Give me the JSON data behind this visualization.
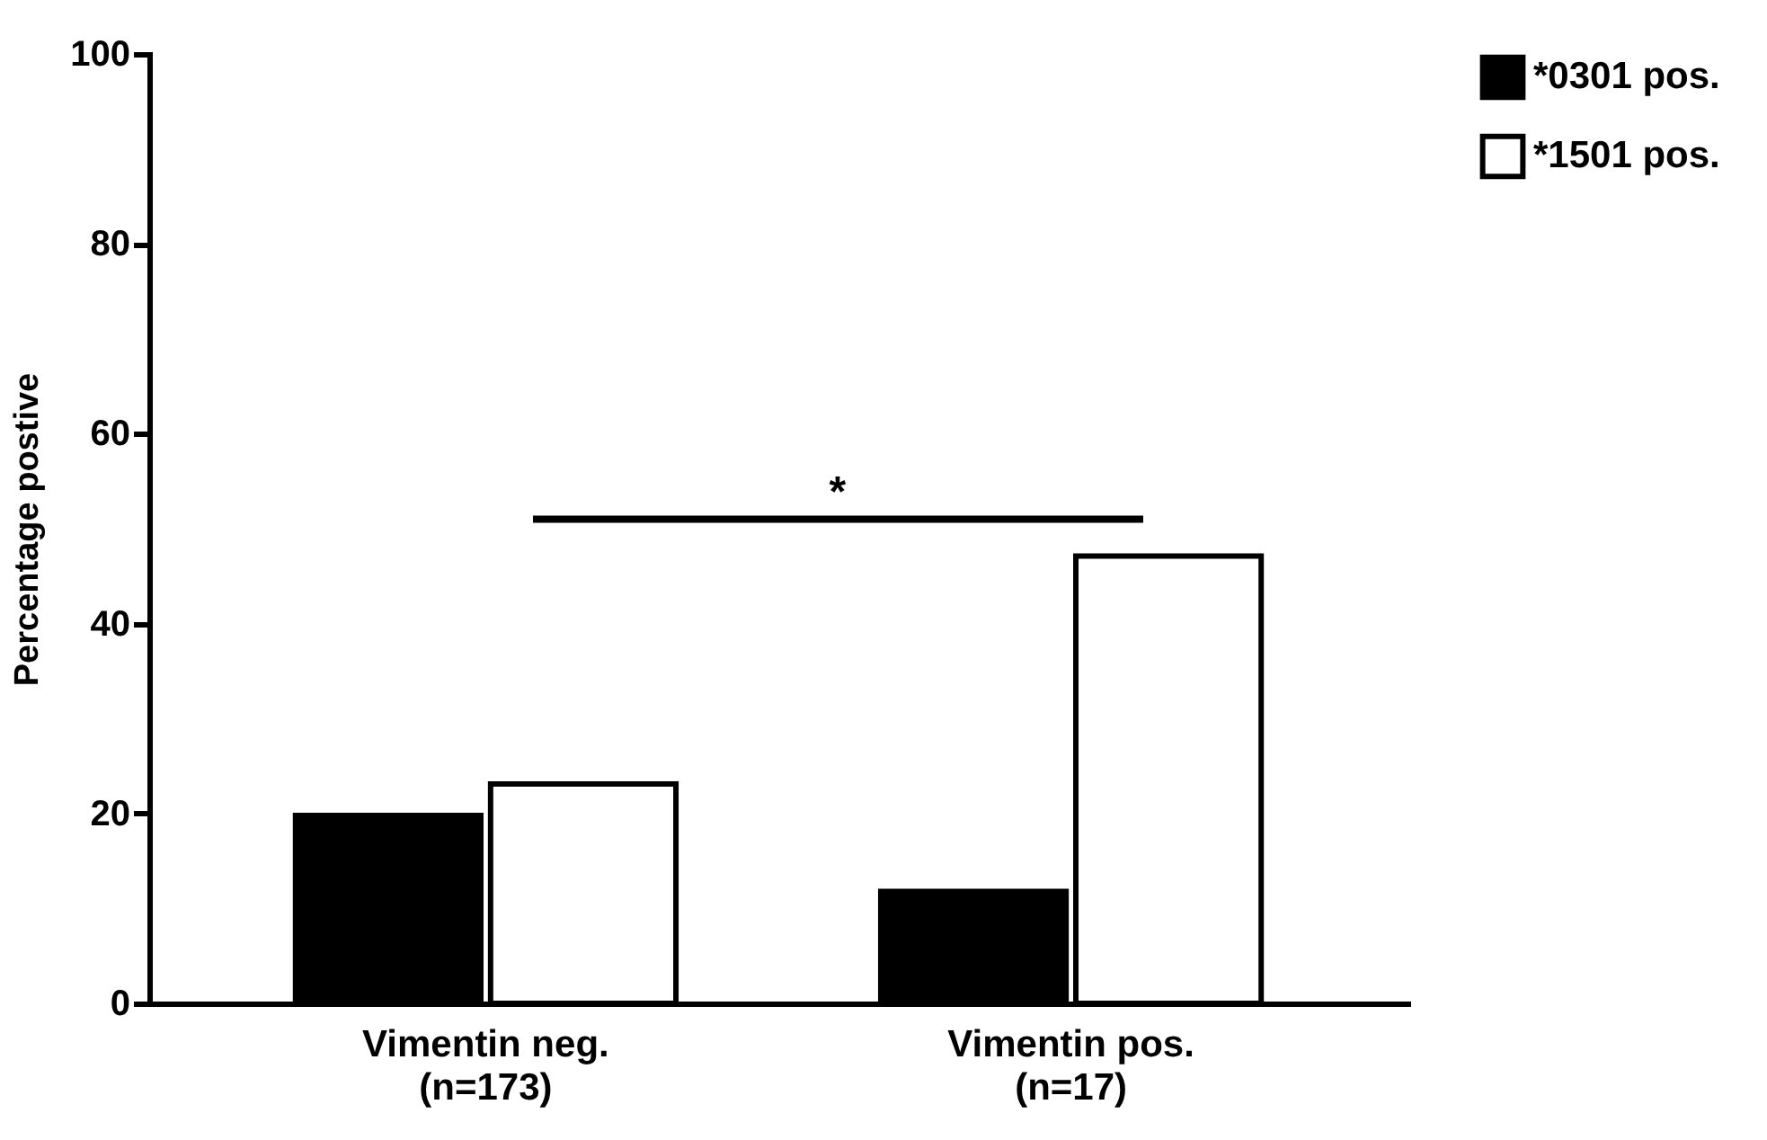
{
  "chart_data": {
    "type": "bar",
    "ylabel": "Percentage postive",
    "categories": [
      "Vimentin neg.\n(n=173)",
      "Vimentin pos.\n(n=17)"
    ],
    "series": [
      {
        "name": "*0301 pos.",
        "color": "#000000",
        "values": [
          19.8,
          11.8
        ]
      },
      {
        "name": "*1501 pos.",
        "color": "#ffffff",
        "values": [
          23.1,
          47.1
        ]
      }
    ],
    "ylim": [
      0,
      100
    ],
    "yticks": [
      0,
      20,
      40,
      60,
      80,
      100
    ],
    "grid": false,
    "legend": "top right",
    "annotations": [
      "*"
    ]
  }
}
